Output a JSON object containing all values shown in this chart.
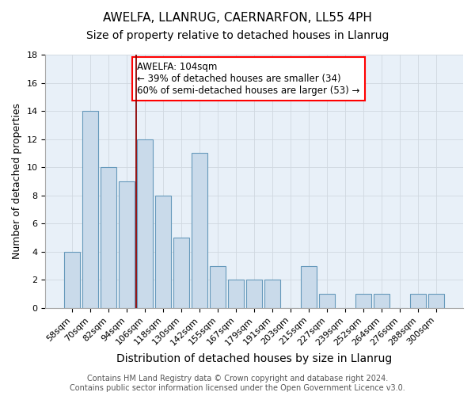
{
  "title": "AWELFA, LLANRUG, CAERNARFON, LL55 4PH",
  "subtitle": "Size of property relative to detached houses in Llanrug",
  "xlabel": "Distribution of detached houses by size in Llanrug",
  "ylabel": "Number of detached properties",
  "categories": [
    "58sqm",
    "70sqm",
    "82sqm",
    "94sqm",
    "106sqm",
    "118sqm",
    "130sqm",
    "142sqm",
    "155sqm",
    "167sqm",
    "179sqm",
    "191sqm",
    "203sqm",
    "215sqm",
    "227sqm",
    "239sqm",
    "252sqm",
    "264sqm",
    "276sqm",
    "288sqm",
    "300sqm"
  ],
  "values": [
    4,
    14,
    10,
    9,
    12,
    8,
    5,
    11,
    3,
    2,
    2,
    2,
    0,
    3,
    1,
    0,
    1,
    1,
    0,
    1,
    1
  ],
  "bar_color": "#c9daea",
  "bar_edge_color": "#6699bb",
  "grid_color": "#d0d8e0",
  "background_color": "#e8f0f8",
  "vline_color": "#8b0000",
  "vline_x_idx": 4,
  "annotation_text": "AWELFA: 104sqm\n← 39% of detached houses are smaller (34)\n60% of semi-detached houses are larger (53) →",
  "annotation_box_color": "white",
  "annotation_box_edge_color": "red",
  "footer": "Contains HM Land Registry data © Crown copyright and database right 2024.\nContains public sector information licensed under the Open Government Licence v3.0.",
  "ylim": [
    0,
    18
  ],
  "yticks": [
    0,
    2,
    4,
    6,
    8,
    10,
    12,
    14,
    16,
    18
  ],
  "title_fontsize": 11,
  "subtitle_fontsize": 10,
  "xlabel_fontsize": 10,
  "ylabel_fontsize": 9,
  "tick_fontsize": 8,
  "footer_fontsize": 7,
  "annotation_fontsize": 8.5
}
